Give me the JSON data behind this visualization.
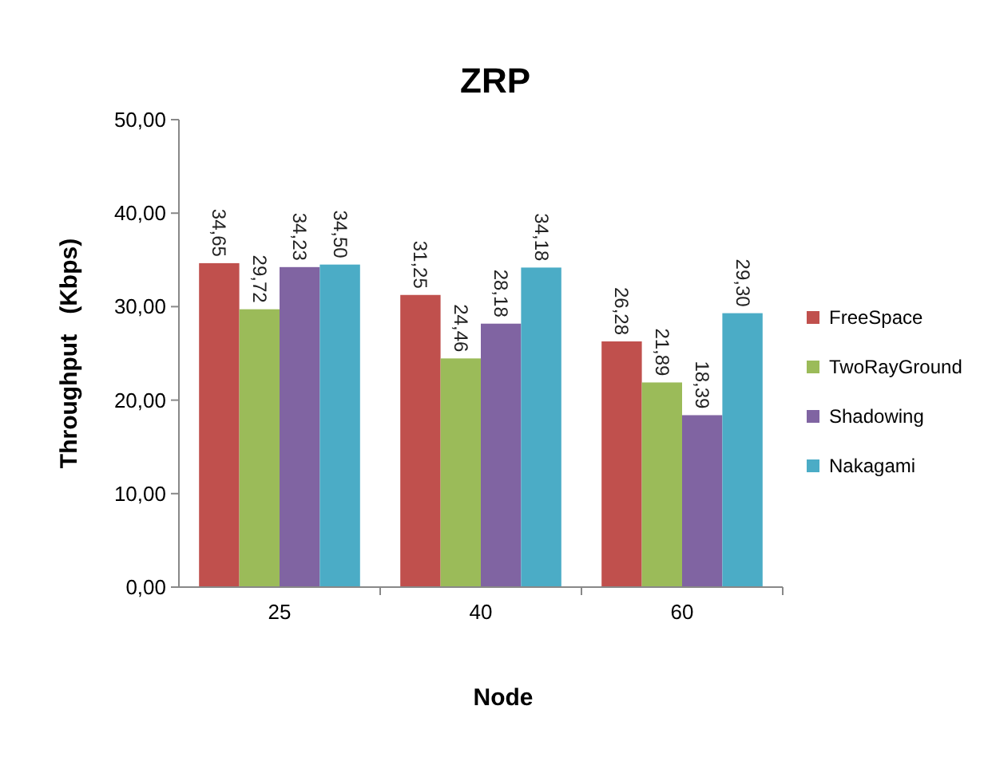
{
  "chart_data": {
    "type": "bar",
    "title": "ZRP",
    "xlabel": "Node",
    "ylabel": "Throughput   (Kbps)",
    "categories": [
      "25",
      "40",
      "60"
    ],
    "series": [
      {
        "name": "FreeSpace",
        "color": "#c0504d",
        "values": [
          34.65,
          31.25,
          26.28
        ],
        "value_labels": [
          "34,65",
          "31,25",
          "26,28"
        ]
      },
      {
        "name": "TwoRayGround",
        "color": "#9bbb59",
        "values": [
          29.72,
          24.46,
          21.89
        ],
        "value_labels": [
          "29,72",
          "24,46",
          "21,89"
        ]
      },
      {
        "name": "Shadowing",
        "color": "#8064a2",
        "values": [
          34.23,
          28.18,
          18.39
        ],
        "value_labels": [
          "34,23",
          "28,18",
          "18,39"
        ]
      },
      {
        "name": "Nakagami",
        "color": "#4bacc6",
        "values": [
          34.5,
          34.18,
          29.3
        ],
        "value_labels": [
          "34,50",
          "34,18",
          "29,30"
        ]
      }
    ],
    "ylim": [
      0,
      50
    ],
    "yticks": [
      {
        "value": 0,
        "label": "0,00"
      },
      {
        "value": 10,
        "label": "10,00"
      },
      {
        "value": 20,
        "label": "20,00"
      },
      {
        "value": 30,
        "label": "30,00"
      },
      {
        "value": 40,
        "label": "40,00"
      },
      {
        "value": 50,
        "label": "50,00"
      }
    ],
    "legend": "right"
  }
}
